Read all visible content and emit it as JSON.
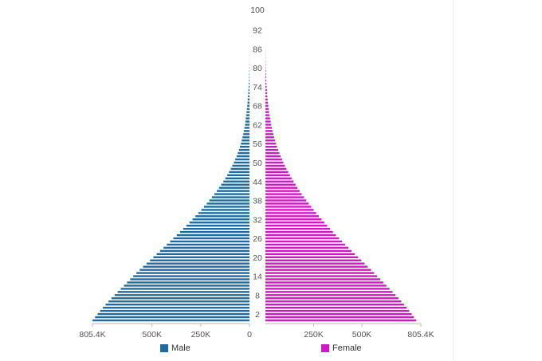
{
  "chart_data": {
    "type": "bar",
    "orientation": "horizontal",
    "age_labels": [
      "100",
      "92",
      "86",
      "80",
      "74",
      "68",
      "62",
      "56",
      "50",
      "44",
      "38",
      "32",
      "26",
      "20",
      "14",
      "8",
      "2"
    ],
    "x_tick_labels_left": [
      "805.4K",
      "500K",
      "250K",
      "0"
    ],
    "x_tick_labels_right": [
      "250K",
      "500K",
      "805.4K"
    ],
    "xlim": [
      0,
      805400
    ],
    "ages": [
      0,
      1,
      2,
      3,
      4,
      5,
      6,
      7,
      8,
      9,
      10,
      11,
      12,
      13,
      14,
      15,
      16,
      17,
      18,
      19,
      20,
      21,
      22,
      23,
      24,
      25,
      26,
      27,
      28,
      29,
      30,
      31,
      32,
      33,
      34,
      35,
      36,
      37,
      38,
      39,
      40,
      41,
      42,
      43,
      44,
      45,
      46,
      47,
      48,
      49,
      50,
      51,
      52,
      53,
      54,
      55,
      56,
      57,
      58,
      59,
      60,
      61,
      62,
      63,
      64,
      65,
      66,
      67,
      68,
      69,
      70,
      71,
      72,
      73,
      74,
      75,
      76,
      77,
      78,
      79,
      80,
      81,
      82,
      83,
      84,
      85,
      86,
      87,
      88,
      89,
      90,
      91,
      92,
      93,
      94,
      95,
      96,
      97,
      98,
      99,
      100
    ],
    "series": [
      {
        "name": "Male",
        "color": "#1f6aa0",
        "values": [
          805000,
          792000,
          779000,
          766000,
          752000,
          738000,
          723000,
          708000,
          692000,
          676000,
          660000,
          644000,
          628000,
          612000,
          596000,
          580000,
          563000,
          546000,
          528000,
          510000,
          493000,
          476000,
          459000,
          441000,
          424000,
          407000,
          390000,
          373000,
          356000,
          340000,
          324000,
          308000,
          292000,
          277000,
          262000,
          247000,
          233000,
          219000,
          206000,
          193000,
          180000,
          168000,
          156000,
          145000,
          134000,
          124000,
          114000,
          105000,
          96000,
          88000,
          80000,
          73000,
          66000,
          60000,
          54000,
          49000,
          44000,
          40000,
          36000,
          32000,
          29000,
          26000,
          23000,
          21000,
          19000,
          17000,
          15000,
          13000,
          11500,
          10000,
          8700,
          7500,
          6400,
          5400,
          4500,
          3700,
          3000,
          2400,
          1900,
          1500,
          1200,
          900,
          700,
          500,
          400,
          300,
          200,
          150,
          100,
          80,
          60,
          40,
          30,
          20,
          15,
          10,
          8,
          5,
          3,
          2,
          1
        ]
      },
      {
        "name": "Female",
        "color": "#d216c8",
        "values": [
          782000,
          770000,
          758000,
          745000,
          732000,
          718000,
          704000,
          689000,
          674000,
          659000,
          643000,
          627000,
          611000,
          595000,
          579000,
          563000,
          547000,
          530000,
          514000,
          497000,
          480000,
          463000,
          446000,
          430000,
          413000,
          397000,
          381000,
          365000,
          350000,
          335000,
          320000,
          305000,
          291000,
          277000,
          263000,
          250000,
          237000,
          224000,
          212000,
          200000,
          188000,
          177000,
          166000,
          156000,
          146000,
          136000,
          127000,
          118000,
          109000,
          101000,
          93000,
          86000,
          79000,
          72000,
          66000,
          60000,
          55000,
          50000,
          45000,
          41000,
          37000,
          33000,
          30000,
          27000,
          24000,
          21500,
          19000,
          17000,
          15000,
          13000,
          11500,
          10000,
          8700,
          7500,
          6400,
          5400,
          4500,
          3700,
          3000,
          2400,
          1900,
          1500,
          1200,
          900,
          700,
          500,
          400,
          300,
          200,
          150,
          100,
          80,
          60,
          40,
          30,
          20,
          12,
          8,
          5,
          3,
          2
        ]
      }
    ],
    "legend": [
      "Male",
      "Female"
    ],
    "legend_position": "bottom"
  }
}
